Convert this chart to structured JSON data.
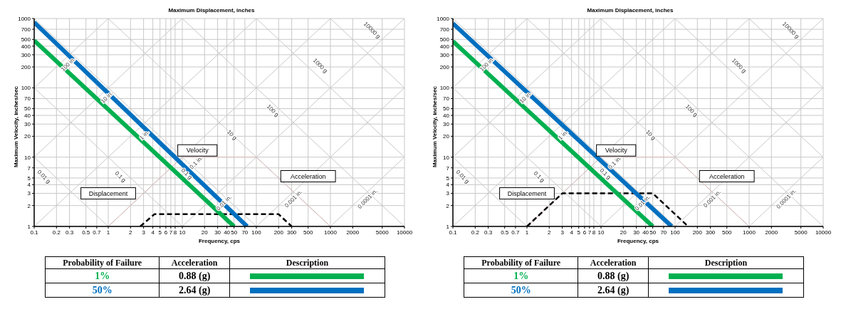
{
  "chart_data": [
    {
      "type": "line",
      "title": "Maximum Displacement, inches",
      "xlabel": "Frequency, cps",
      "ylabel": "Maximum Velocity, inches/sec",
      "log": "xy",
      "grid": true,
      "legend": "bottom",
      "xlim": [
        0.1,
        10000
      ],
      "ylim": [
        1,
        1000
      ],
      "xticks": [
        0.1,
        0.2,
        0.3,
        0.5,
        0.7,
        1,
        2,
        3,
        4,
        5,
        6,
        7,
        8,
        10,
        20,
        30,
        40,
        50,
        70,
        100,
        200,
        300,
        500,
        1000,
        2000,
        5000,
        10000
      ],
      "yticks": [
        1,
        2,
        3,
        4,
        5,
        7,
        10,
        20,
        30,
        40,
        50,
        70,
        100,
        200,
        300,
        400,
        500,
        700,
        1000
      ],
      "series": [
        {
          "color": "#c8c8c8",
          "x": [
            0.1,
            1
          ],
          "values": [
            10,
            1
          ]
        },
        {
          "color": "#c8c8c8",
          "x": [
            0.1,
            10
          ],
          "values": [
            100,
            1
          ]
        },
        {
          "color": "#c8c8c8",
          "x": [
            0.1,
            100
          ],
          "values": [
            1000,
            1
          ]
        },
        {
          "color": "#c8c8c8",
          "x": [
            1,
            1000
          ],
          "values": [
            1000,
            1
          ]
        },
        {
          "color": "#c8c8c8",
          "x": [
            10,
            10000
          ],
          "values": [
            1000,
            1
          ]
        },
        {
          "color": "#c8c8c8",
          "x": [
            100,
            10000
          ],
          "values": [
            1000,
            10
          ]
        },
        {
          "color": "#c8c8c8",
          "x": [
            1000,
            10000
          ],
          "values": [
            1000,
            100
          ]
        },
        {
          "color": "#c8c8c8",
          "x": [
            0.1,
            1
          ],
          "values": [
            100,
            1000
          ]
        },
        {
          "color": "#c8c8c8",
          "x": [
            0.1,
            10
          ],
          "values": [
            10,
            1000
          ]
        },
        {
          "color": "#c8c8c8",
          "x": [
            0.1,
            100
          ],
          "values": [
            1,
            1000
          ]
        },
        {
          "color": "#c8c8c8",
          "x": [
            1,
            1000
          ],
          "values": [
            1,
            1000
          ]
        },
        {
          "color": "#c8c8c8",
          "x": [
            10,
            10000
          ],
          "values": [
            1,
            1000
          ]
        },
        {
          "color": "#c8c8c8",
          "x": [
            100,
            10000
          ],
          "values": [
            1,
            100
          ]
        },
        {
          "color": "#c8c8c8",
          "x": [
            1000,
            10000
          ],
          "values": [
            1,
            10
          ]
        },
        {
          "color": "#d9b9b9",
          "x": [
            1,
            10,
            100,
            1000
          ],
          "values": [
            1,
            10,
            10,
            1
          ]
        },
        {
          "color": "#000000",
          "line_style": "dashed",
          "x": [
            2.7,
            4.2,
            200,
            300
          ],
          "values": [
            1,
            1.5,
            1.5,
            1
          ]
        },
        {
          "name": "1%",
          "color": "#00b050",
          "x": [
            0.1,
            50
          ],
          "values": [
            480,
            1
          ]
        },
        {
          "name": "50%",
          "color": "#0070c0",
          "x": [
            0.1,
            75
          ],
          "values": [
            880,
            1
          ]
        }
      ],
      "annotations": [
        "100 in.",
        "10 in.",
        "1 in.",
        "0.1 in.",
        "0.01 in.",
        "0.001 in.",
        "0.0001 in.",
        "0.01 g",
        "0.1 g",
        "0.1 g",
        "10 g",
        "100 g",
        "1000 g",
        "10000 g",
        "Velocity",
        "Displacement",
        "Acceleration",
        "Probability of Failure",
        "Acceleration",
        "Description",
        "0.88 (g)",
        "2.64 (g)"
      ]
    },
    {
      "type": "line",
      "title": "Maximum Displacement, inches",
      "xlabel": "Frequency, cps",
      "ylabel": "Maximum Velocity, inches/sec",
      "log": "xy",
      "grid": true,
      "legend": "bottom",
      "xlim": [
        0.1,
        10000
      ],
      "ylim": [
        1,
        1000
      ],
      "xticks": [
        0.1,
        0.2,
        0.3,
        0.5,
        0.7,
        1,
        2,
        3,
        4,
        5,
        6,
        7,
        8,
        10,
        20,
        30,
        40,
        50,
        70,
        100,
        200,
        300,
        500,
        1000,
        2000,
        5000,
        10000
      ],
      "yticks": [
        1,
        2,
        3,
        4,
        5,
        7,
        10,
        20,
        30,
        40,
        50,
        70,
        100,
        200,
        300,
        400,
        500,
        700,
        1000
      ],
      "series": [
        {
          "color": "#c8c8c8",
          "x": [
            0.1,
            1
          ],
          "values": [
            10,
            1
          ]
        },
        {
          "color": "#c8c8c8",
          "x": [
            0.1,
            10
          ],
          "values": [
            100,
            1
          ]
        },
        {
          "color": "#c8c8c8",
          "x": [
            0.1,
            100
          ],
          "values": [
            1000,
            1
          ]
        },
        {
          "color": "#c8c8c8",
          "x": [
            1,
            1000
          ],
          "values": [
            1000,
            1
          ]
        },
        {
          "color": "#c8c8c8",
          "x": [
            10,
            10000
          ],
          "values": [
            1000,
            1
          ]
        },
        {
          "color": "#c8c8c8",
          "x": [
            100,
            10000
          ],
          "values": [
            1000,
            10
          ]
        },
        {
          "color": "#c8c8c8",
          "x": [
            1000,
            10000
          ],
          "values": [
            1000,
            100
          ]
        },
        {
          "color": "#c8c8c8",
          "x": [
            0.1,
            1
          ],
          "values": [
            100,
            1000
          ]
        },
        {
          "color": "#c8c8c8",
          "x": [
            0.1,
            10
          ],
          "values": [
            10,
            1000
          ]
        },
        {
          "color": "#c8c8c8",
          "x": [
            0.1,
            100
          ],
          "values": [
            1,
            1000
          ]
        },
        {
          "color": "#c8c8c8",
          "x": [
            1,
            1000
          ],
          "values": [
            1,
            1000
          ]
        },
        {
          "color": "#c8c8c8",
          "x": [
            10,
            10000
          ],
          "values": [
            1,
            1000
          ]
        },
        {
          "color": "#c8c8c8",
          "x": [
            100,
            10000
          ],
          "values": [
            1,
            100
          ]
        },
        {
          "color": "#c8c8c8",
          "x": [
            1000,
            10000
          ],
          "values": [
            1,
            10
          ]
        },
        {
          "color": "#d9b9b9",
          "x": [
            1,
            10,
            100,
            1000
          ],
          "values": [
            1,
            10,
            10,
            1
          ]
        },
        {
          "color": "#000000",
          "line_style": "dashed",
          "x": [
            1,
            3,
            50,
            150
          ],
          "values": [
            1,
            3,
            3,
            1
          ]
        },
        {
          "name": "1%",
          "color": "#00b050",
          "x": [
            0.1,
            50
          ],
          "values": [
            470,
            1
          ]
        },
        {
          "name": "50%",
          "color": "#0070c0",
          "x": [
            0.1,
            90
          ],
          "values": [
            850,
            1
          ]
        }
      ],
      "annotations": [
        "100 in.",
        "10 in.",
        "1 in.",
        "0.1 in.",
        "0.01 in.",
        "0.001 in.",
        "0.0001 in.",
        "0.01 g",
        "0.1 g",
        "0.1 g",
        "10 g",
        "100 g",
        "1000 g",
        "10000 g",
        "Velocity",
        "Displacement",
        "Acceleration",
        "Probability of Failure",
        "Acceleration",
        "Description",
        "0.88 (g)",
        "2.64 (g)"
      ]
    }
  ]
}
